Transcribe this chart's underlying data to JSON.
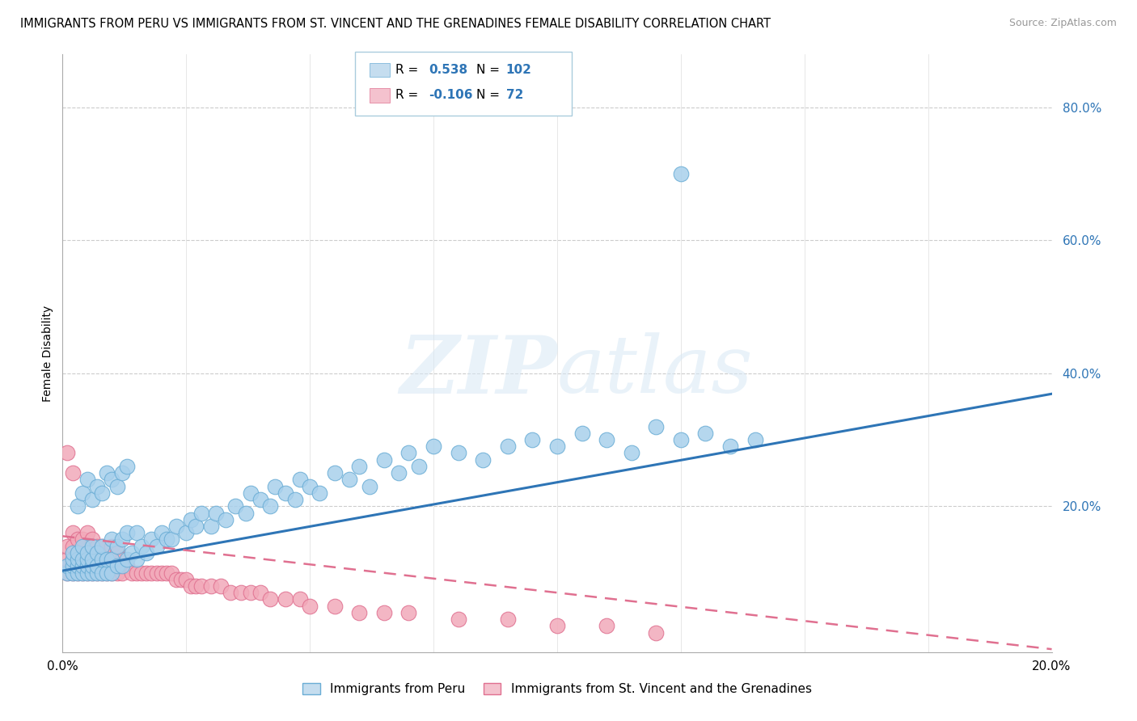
{
  "title": "IMMIGRANTS FROM PERU VS IMMIGRANTS FROM ST. VINCENT AND THE GRENADINES FEMALE DISABILITY CORRELATION CHART",
  "source": "Source: ZipAtlas.com",
  "ylabel": "Female Disability",
  "yticks_labels": [
    "80.0%",
    "60.0%",
    "40.0%",
    "20.0%"
  ],
  "ytick_vals": [
    0.8,
    0.6,
    0.4,
    0.2
  ],
  "xlim": [
    0.0,
    0.2
  ],
  "ylim": [
    -0.02,
    0.88
  ],
  "peru_R": 0.538,
  "peru_N": 102,
  "stv_R": -0.106,
  "stv_N": 72,
  "peru_color": "#A8D0EC",
  "peru_edge": "#6AADD5",
  "stv_color": "#F2AABA",
  "stv_edge": "#E07090",
  "peru_line_color": "#2E75B6",
  "stv_line_color": "#E07090",
  "legend_box_peru": "#C5DDEF",
  "legend_box_stv": "#F4C2CE",
  "background_color": "#FFFFFF",
  "title_fontsize": 10.5,
  "source_fontsize": 9,
  "peru_line_intercept": 0.103,
  "peru_line_slope": 1.33,
  "stv_line_intercept": 0.155,
  "stv_line_slope": -0.85,
  "peru_x": [
    0.001,
    0.001,
    0.002,
    0.002,
    0.002,
    0.002,
    0.003,
    0.003,
    0.003,
    0.003,
    0.004,
    0.004,
    0.004,
    0.004,
    0.005,
    0.005,
    0.005,
    0.005,
    0.006,
    0.006,
    0.006,
    0.006,
    0.007,
    0.007,
    0.007,
    0.008,
    0.008,
    0.008,
    0.009,
    0.009,
    0.01,
    0.01,
    0.01,
    0.011,
    0.011,
    0.012,
    0.012,
    0.013,
    0.013,
    0.014,
    0.015,
    0.015,
    0.016,
    0.017,
    0.018,
    0.019,
    0.02,
    0.021,
    0.022,
    0.023,
    0.025,
    0.026,
    0.027,
    0.028,
    0.03,
    0.031,
    0.033,
    0.035,
    0.037,
    0.038,
    0.04,
    0.042,
    0.043,
    0.045,
    0.047,
    0.048,
    0.05,
    0.052,
    0.055,
    0.058,
    0.06,
    0.062,
    0.065,
    0.068,
    0.07,
    0.072,
    0.075,
    0.08,
    0.085,
    0.09,
    0.095,
    0.1,
    0.105,
    0.11,
    0.115,
    0.12,
    0.125,
    0.13,
    0.135,
    0.14,
    0.003,
    0.004,
    0.005,
    0.006,
    0.007,
    0.008,
    0.009,
    0.01,
    0.011,
    0.012,
    0.013,
    0.125
  ],
  "peru_y": [
    0.1,
    0.11,
    0.1,
    0.11,
    0.12,
    0.13,
    0.1,
    0.11,
    0.12,
    0.13,
    0.1,
    0.11,
    0.12,
    0.14,
    0.1,
    0.11,
    0.12,
    0.13,
    0.1,
    0.11,
    0.12,
    0.14,
    0.1,
    0.11,
    0.13,
    0.1,
    0.12,
    0.14,
    0.1,
    0.12,
    0.1,
    0.12,
    0.15,
    0.11,
    0.14,
    0.11,
    0.15,
    0.12,
    0.16,
    0.13,
    0.12,
    0.16,
    0.14,
    0.13,
    0.15,
    0.14,
    0.16,
    0.15,
    0.15,
    0.17,
    0.16,
    0.18,
    0.17,
    0.19,
    0.17,
    0.19,
    0.18,
    0.2,
    0.19,
    0.22,
    0.21,
    0.2,
    0.23,
    0.22,
    0.21,
    0.24,
    0.23,
    0.22,
    0.25,
    0.24,
    0.26,
    0.23,
    0.27,
    0.25,
    0.28,
    0.26,
    0.29,
    0.28,
    0.27,
    0.29,
    0.3,
    0.29,
    0.31,
    0.3,
    0.28,
    0.32,
    0.3,
    0.31,
    0.29,
    0.3,
    0.2,
    0.22,
    0.24,
    0.21,
    0.23,
    0.22,
    0.25,
    0.24,
    0.23,
    0.25,
    0.26,
    0.7
  ],
  "stv_x": [
    0.001,
    0.001,
    0.001,
    0.002,
    0.002,
    0.002,
    0.002,
    0.003,
    0.003,
    0.003,
    0.003,
    0.004,
    0.004,
    0.004,
    0.005,
    0.005,
    0.005,
    0.006,
    0.006,
    0.006,
    0.007,
    0.007,
    0.007,
    0.008,
    0.008,
    0.008,
    0.009,
    0.009,
    0.01,
    0.01,
    0.01,
    0.011,
    0.011,
    0.012,
    0.012,
    0.013,
    0.014,
    0.015,
    0.016,
    0.017,
    0.018,
    0.019,
    0.02,
    0.021,
    0.022,
    0.023,
    0.024,
    0.025,
    0.026,
    0.027,
    0.028,
    0.03,
    0.032,
    0.034,
    0.036,
    0.038,
    0.04,
    0.042,
    0.045,
    0.048,
    0.05,
    0.055,
    0.06,
    0.065,
    0.07,
    0.08,
    0.09,
    0.1,
    0.11,
    0.12,
    0.001,
    0.002
  ],
  "stv_y": [
    0.1,
    0.12,
    0.14,
    0.1,
    0.12,
    0.14,
    0.16,
    0.1,
    0.11,
    0.13,
    0.15,
    0.1,
    0.12,
    0.15,
    0.1,
    0.13,
    0.16,
    0.1,
    0.12,
    0.15,
    0.1,
    0.12,
    0.14,
    0.1,
    0.12,
    0.14,
    0.1,
    0.12,
    0.1,
    0.12,
    0.14,
    0.1,
    0.13,
    0.1,
    0.12,
    0.11,
    0.1,
    0.1,
    0.1,
    0.1,
    0.1,
    0.1,
    0.1,
    0.1,
    0.1,
    0.09,
    0.09,
    0.09,
    0.08,
    0.08,
    0.08,
    0.08,
    0.08,
    0.07,
    0.07,
    0.07,
    0.07,
    0.06,
    0.06,
    0.06,
    0.05,
    0.05,
    0.04,
    0.04,
    0.04,
    0.03,
    0.03,
    0.02,
    0.02,
    0.01,
    0.28,
    0.25
  ]
}
